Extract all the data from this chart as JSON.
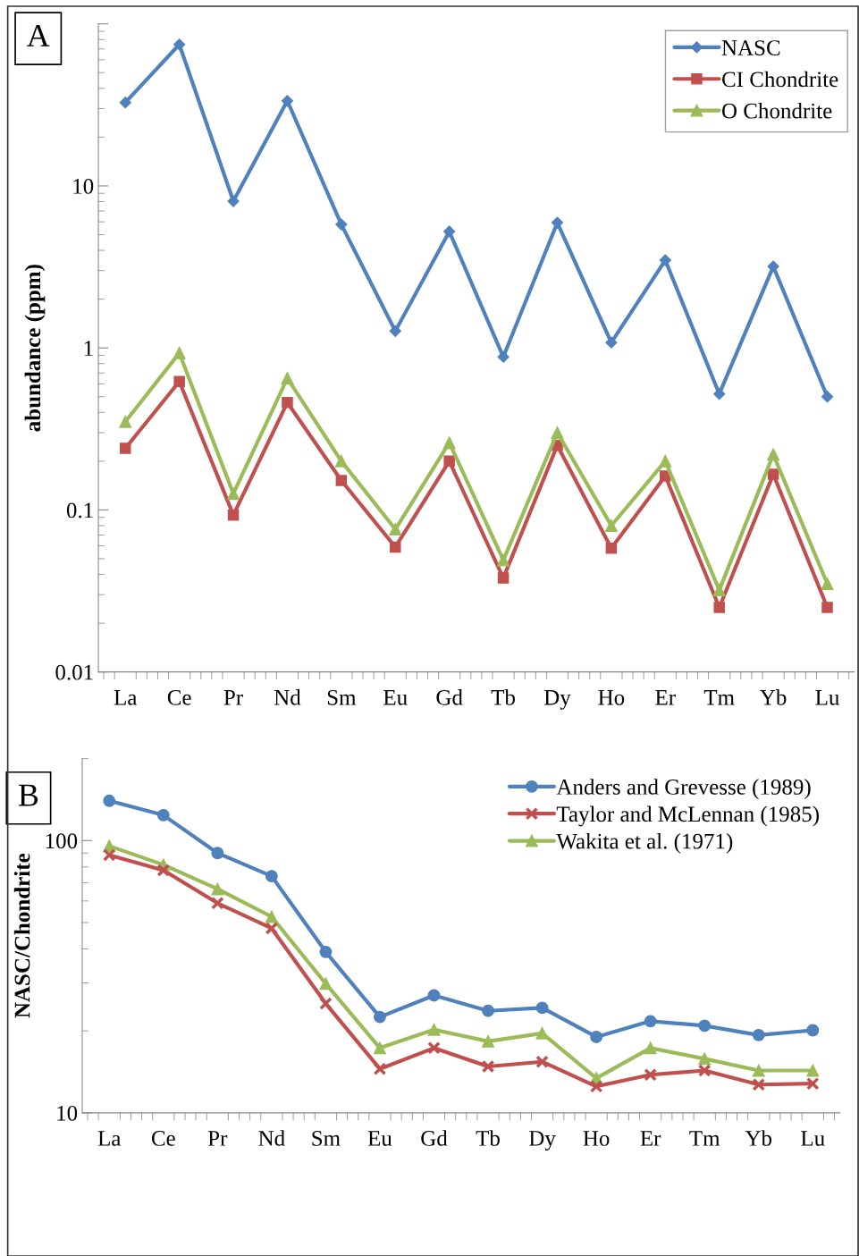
{
  "chart_data": [
    {
      "type": "line",
      "ylabel": "abundance (ppm)",
      "annotations": [
        "A"
      ],
      "log": true,
      "grid": false,
      "legend": "top right",
      "categories": [
        "La",
        "Ce",
        "Pr",
        "Nd",
        "Sm",
        "Eu",
        "Gd",
        "Tb",
        "Dy",
        "Ho",
        "Er",
        "Tm",
        "Yb",
        "Lu"
      ],
      "ylim": [
        0.01,
        100
      ],
      "yticks": [
        0.01,
        0.1,
        1,
        10,
        {
          "value": 100,
          "label": null
        }
      ],
      "series": [
        {
          "name": "NASC",
          "color": "#4f81bd",
          "marker": "diamond",
          "values": [
            32.7,
            74.6,
            8.05,
            33.5,
            5.78,
            1.27,
            5.23,
            0.88,
            5.93,
            1.08,
            3.48,
            0.52,
            3.18,
            0.5
          ]
        },
        {
          "name": "CI Chondrite",
          "color": "#c0504d",
          "marker": "square",
          "values": [
            0.24,
            0.62,
            0.093,
            0.46,
            0.152,
            0.059,
            0.2,
            0.038,
            0.25,
            0.058,
            0.162,
            0.025,
            0.166,
            0.025
          ]
        },
        {
          "name": "O Chondrite",
          "color": "#9bbb59",
          "marker": "triangle",
          "values": [
            0.35,
            0.93,
            0.126,
            0.65,
            0.2,
            0.076,
            0.26,
            0.049,
            0.3,
            0.08,
            0.2,
            0.032,
            0.22,
            0.035
          ]
        }
      ]
    },
    {
      "type": "line",
      "ylabel": "NASC/Chondrite",
      "annotations": [
        "B"
      ],
      "log": true,
      "grid": false,
      "legend": "top right",
      "categories": [
        "La",
        "Ce",
        "Pr",
        "Nd",
        "Sm",
        "Eu",
        "Gd",
        "Tb",
        "Dy",
        "Ho",
        "Er",
        "Tm",
        "Yb",
        "Lu"
      ],
      "ylim": [
        10,
        200
      ],
      "yticks": [
        10,
        100
      ],
      "series": [
        {
          "name": "Anders and Grevesse (1989)",
          "color": "#4f81bd",
          "marker": "circle",
          "values": [
            140,
            124,
            90,
            74,
            39,
            22.5,
            27,
            23.7,
            24.3,
            19,
            21.7,
            20.9,
            19.3,
            20.1
          ]
        },
        {
          "name": "Taylor and McLennan (1985)",
          "color": "#c0504d",
          "marker": "cross",
          "values": [
            88.5,
            77.8,
            58.9,
            47.6,
            25.2,
            14.5,
            17.3,
            14.8,
            15.4,
            12.5,
            13.8,
            14.3,
            12.7,
            12.8
          ]
        },
        {
          "name": "Wakita et al. (1971)",
          "color": "#9bbb59",
          "marker": "triangle",
          "values": [
            95.5,
            81.5,
            66.4,
            52.5,
            29.8,
            17.3,
            20.2,
            18.3,
            19.6,
            13.4,
            17.3,
            15.8,
            14.3,
            14.3
          ]
        }
      ]
    }
  ]
}
